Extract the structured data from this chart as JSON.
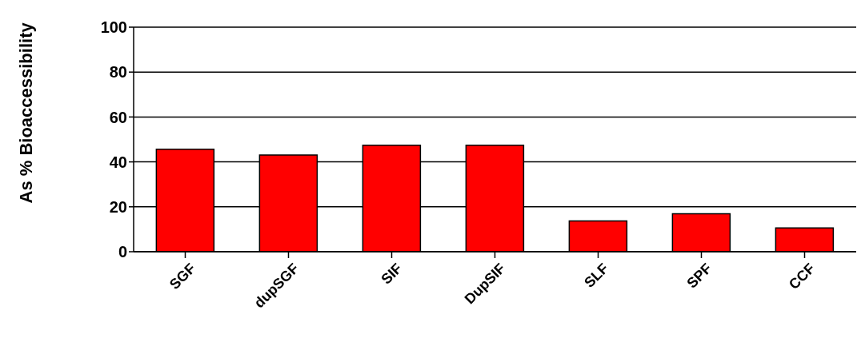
{
  "chart_data": {
    "type": "bar",
    "ylabel": "As % Bioaccessibility",
    "categories": [
      "SGF",
      "dupSGF",
      "SIF",
      "DupSIF",
      "SLF",
      "SPF",
      "CCF"
    ],
    "values": [
      45.6,
      43.1,
      47.4,
      47.4,
      13.7,
      16.9,
      10.6
    ],
    "color": "#ff0000",
    "ylim": [
      0,
      100
    ],
    "yticks": [
      0,
      20,
      40,
      60,
      80,
      100
    ],
    "grid": "y"
  }
}
